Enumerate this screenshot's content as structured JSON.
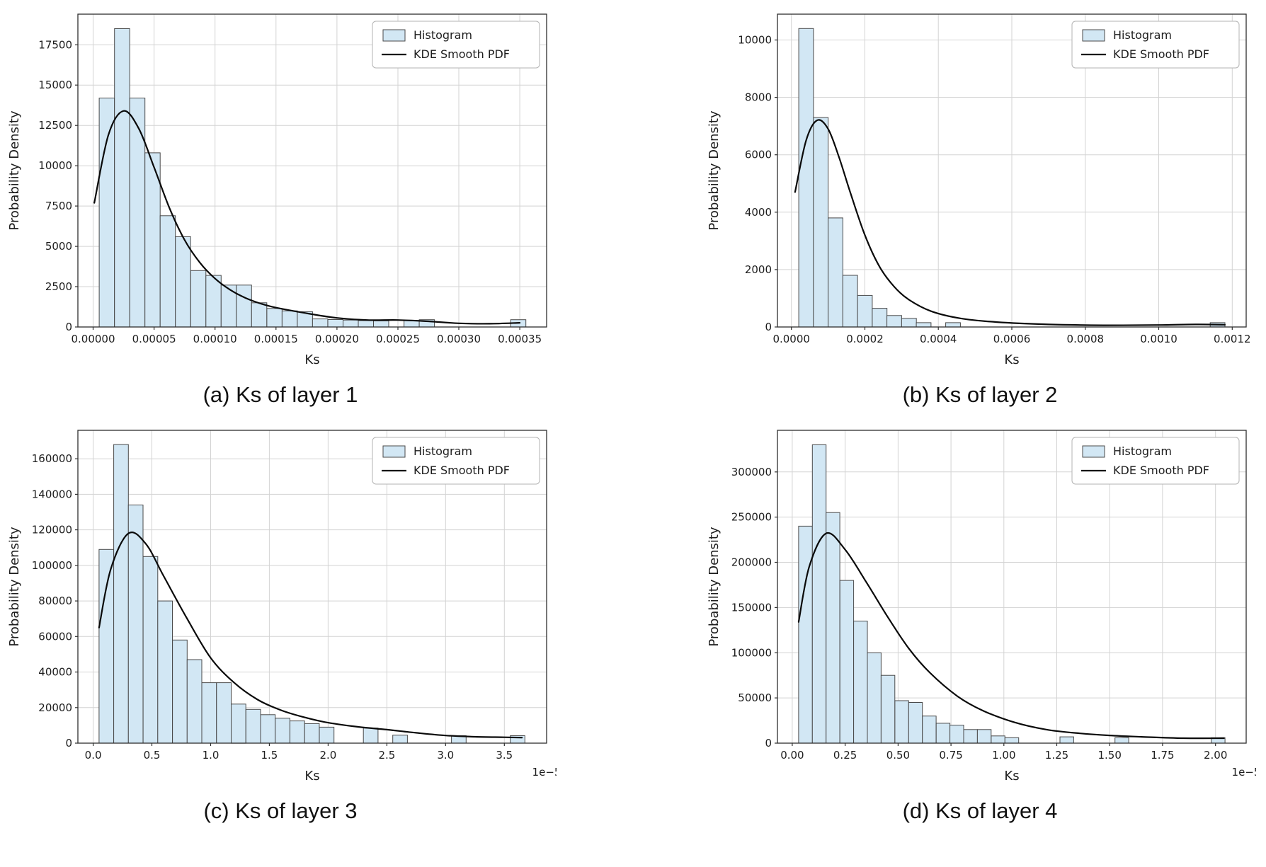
{
  "legend": {
    "histogram": "Histogram",
    "kde": "KDE Smooth PDF"
  },
  "colors": {
    "bar_fill": "#d2e7f4",
    "bar_edge": "#4a4a4a",
    "kde": "#0a0a0a",
    "grid": "#d3d3d3",
    "frame": "#2e2e2e",
    "text": "#1d1d1d",
    "legend_border": "#b3b3b3"
  },
  "chart_data": [
    {
      "type": "bar",
      "subtype": "histogram+kde",
      "caption": "(a) Ks of layer 1",
      "xlabel": "Ks",
      "ylabel": "Probability Density",
      "x_offset_label": "",
      "legend_entries": [
        "Histogram",
        "KDE Smooth PDF"
      ],
      "xlim": [
        -1.25e-05,
        0.000372
      ],
      "ylim": [
        0,
        19400
      ],
      "xticks": {
        "values": [
          0,
          5e-05,
          0.0001,
          0.00015,
          0.0002,
          0.00025,
          0.0003,
          0.00035
        ],
        "labels": [
          "0.00000",
          "0.00005",
          "0.00010",
          "0.00015",
          "0.00020",
          "0.00025",
          "0.00030",
          "0.00035"
        ]
      },
      "yticks": {
        "values": [
          0,
          2500,
          5000,
          7500,
          10000,
          12500,
          15000,
          17500
        ],
        "labels": [
          "0",
          "2500",
          "5000",
          "7500",
          "10000",
          "12500",
          "15000",
          "17500"
        ]
      },
      "bins": {
        "start": 5e-06,
        "width": 1.25e-05,
        "values": [
          14200,
          18500,
          14200,
          10800,
          6900,
          5600,
          3500,
          3200,
          2600,
          2600,
          1500,
          1150,
          1000,
          950,
          500,
          460,
          430,
          400,
          380,
          0,
          400,
          450,
          0,
          0,
          0,
          0,
          0,
          450
        ]
      },
      "kde": {
        "x": [
          1e-06,
          1.25e-05,
          2.5e-05,
          3.75e-05,
          5e-05,
          6.25e-05,
          7.5e-05,
          8.75e-05,
          0.0001,
          0.0001125,
          0.000125,
          0.0001375,
          0.00015,
          0.000175,
          0.0002,
          0.000225,
          0.00025,
          0.000275,
          0.0003,
          0.000325,
          0.00035
        ],
        "y": [
          7700,
          11900,
          13400,
          12300,
          9900,
          7400,
          5400,
          4000,
          3000,
          2300,
          1800,
          1450,
          1200,
          850,
          560,
          430,
          430,
          350,
          230,
          200,
          260
        ]
      }
    },
    {
      "type": "bar",
      "subtype": "histogram+kde",
      "caption": "(b) Ks of layer 2",
      "xlabel": "Ks",
      "ylabel": "Probability Density",
      "x_offset_label": "",
      "legend_entries": [
        "Histogram",
        "KDE Smooth PDF"
      ],
      "xlim": [
        -3.8e-05,
        0.001238
      ],
      "ylim": [
        0,
        10900
      ],
      "xticks": {
        "values": [
          0,
          0.0002,
          0.0004,
          0.0006,
          0.0008,
          0.001,
          0.0012
        ],
        "labels": [
          "0.0000",
          "0.0002",
          "0.0004",
          "0.0006",
          "0.0008",
          "0.0010",
          "0.0012"
        ]
      },
      "yticks": {
        "values": [
          0,
          2000,
          4000,
          6000,
          8000,
          10000
        ],
        "labels": [
          "0",
          "2000",
          "4000",
          "6000",
          "8000",
          "10000"
        ]
      },
      "bins": {
        "start": 2e-05,
        "width": 4e-05,
        "values": [
          10400,
          7300,
          3800,
          1800,
          1100,
          650,
          400,
          300,
          150,
          0,
          150,
          0,
          0,
          0,
          0,
          0,
          0,
          0,
          0,
          0,
          0,
          0,
          0,
          0,
          0,
          0,
          0,
          0,
          150
        ]
      },
      "kde": {
        "x": [
          1e-05,
          4e-05,
          7e-05,
          0.0001,
          0.00013,
          0.00016,
          0.0002,
          0.00024,
          0.00028,
          0.00032,
          0.00038,
          0.00046,
          0.00056,
          0.0007,
          0.00085,
          0.001,
          0.0011,
          0.00118
        ],
        "y": [
          4700,
          6500,
          7200,
          6900,
          5900,
          4700,
          3200,
          2100,
          1400,
          950,
          550,
          300,
          170,
          90,
          60,
          70,
          90,
          80
        ]
      }
    },
    {
      "type": "bar",
      "subtype": "histogram+kde",
      "caption": "(c) Ks of layer 3",
      "xlabel": "Ks",
      "ylabel": "Probability Density",
      "x_offset_label": "1e−5",
      "legend_entries": [
        "Histogram",
        "KDE Smooth PDF"
      ],
      "xlim": [
        -1.3e-06,
        3.86e-05
      ],
      "ylim": [
        0,
        176000
      ],
      "xticks": {
        "values": [
          0,
          5e-06,
          1e-05,
          1.5e-05,
          2e-05,
          2.5e-05,
          3e-05,
          3.5e-05
        ],
        "labels": [
          "0.0",
          "0.5",
          "1.0",
          "1.5",
          "2.0",
          "2.5",
          "3.0",
          "3.5"
        ]
      },
      "yticks": {
        "values": [
          0,
          20000,
          40000,
          60000,
          80000,
          100000,
          120000,
          140000,
          160000
        ],
        "labels": [
          "0",
          "20000",
          "40000",
          "60000",
          "80000",
          "100000",
          "120000",
          "140000",
          "160000"
        ]
      },
      "bins": {
        "start": 5e-07,
        "width": 1.25e-06,
        "values": [
          109000,
          168000,
          134000,
          105000,
          80000,
          58000,
          47000,
          34000,
          34000,
          22000,
          19000,
          16000,
          14000,
          12500,
          11000,
          9000,
          0,
          0,
          8500,
          0,
          4500,
          0,
          0,
          0,
          4200,
          0,
          0,
          0,
          4200
        ]
      },
      "kde": {
        "x": [
          5e-07,
          1.5e-06,
          3e-06,
          4.5e-06,
          6e-06,
          8e-06,
          1e-05,
          1.2e-05,
          1.4e-05,
          1.6e-05,
          1.8e-05,
          2e-05,
          2.25e-05,
          2.5e-05,
          2.75e-05,
          3e-05,
          3.25e-05,
          3.5e-05,
          3.65e-05
        ],
        "y": [
          65000,
          98000,
          118000,
          112000,
          94000,
          70000,
          48000,
          34000,
          24500,
          18500,
          14500,
          11500,
          9200,
          7600,
          5800,
          4300,
          3600,
          3300,
          3100
        ]
      }
    },
    {
      "type": "bar",
      "subtype": "histogram+kde",
      "caption": "(d) Ks of layer 4",
      "xlabel": "Ks",
      "ylabel": "Probability Density",
      "x_offset_label": "1e−5",
      "legend_entries": [
        "Histogram",
        "KDE Smooth PDF"
      ],
      "xlim": [
        -7e-07,
        2.145e-05
      ],
      "ylim": [
        0,
        346000
      ],
      "xticks": {
        "values": [
          0,
          2.5e-06,
          5e-06,
          7.5e-06,
          1e-05,
          1.25e-05,
          1.5e-05,
          1.75e-05,
          2e-05
        ],
        "labels": [
          "0.00",
          "0.25",
          "0.50",
          "0.75",
          "1.00",
          "1.25",
          "1.50",
          "1.75",
          "2.00"
        ]
      },
      "yticks": {
        "values": [
          0,
          50000,
          100000,
          150000,
          200000,
          250000,
          300000
        ],
        "labels": [
          "0",
          "50000",
          "100000",
          "150000",
          "200000",
          "250000",
          "300000"
        ]
      },
      "bins": {
        "start": 3e-07,
        "width": 6.5e-07,
        "values": [
          240000,
          330000,
          255000,
          180000,
          135000,
          100000,
          75000,
          47000,
          45000,
          30000,
          22000,
          20000,
          15000,
          15000,
          8000,
          6000,
          0,
          0,
          0,
          7000,
          0,
          0,
          0,
          6000,
          0,
          0,
          0,
          0,
          0,
          0,
          6000
        ]
      },
      "kde": {
        "x": [
          3e-07,
          8e-07,
          1.6e-06,
          2.5e-06,
          3.5e-06,
          4.5e-06,
          5.5e-06,
          6.5e-06,
          7.8e-06,
          9e-06,
          1.05e-05,
          1.2e-05,
          1.35e-05,
          1.5e-05,
          1.65e-05,
          1.85e-05,
          2.04e-05
        ],
        "y": [
          134000,
          195000,
          232000,
          214000,
          178000,
          140000,
          105000,
          78000,
          52000,
          36000,
          23000,
          15000,
          11000,
          8500,
          7000,
          5500,
          5500
        ]
      }
    }
  ]
}
